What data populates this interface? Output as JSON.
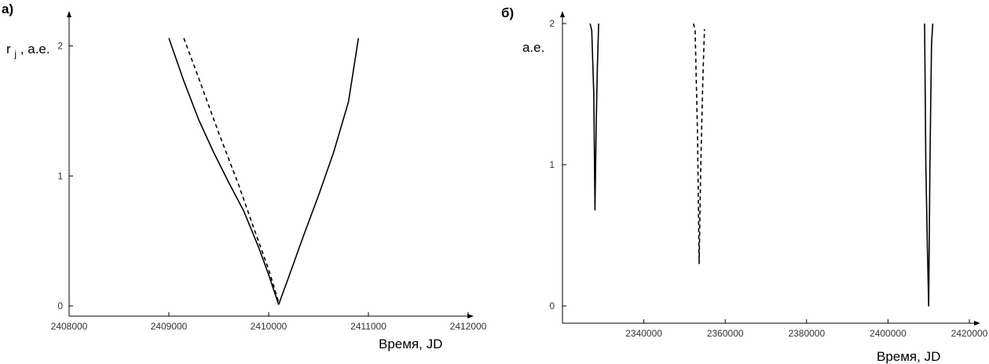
{
  "chart_data": [
    {
      "type": "line",
      "panel_label": "а)",
      "xlabel": "Время, JD",
      "ylabel": "r",
      "ylabel_subscript": "j",
      "ylabel_rest": ", а.е.",
      "xlim": [
        2408000,
        2412000
      ],
      "ylim": [
        0,
        2.1
      ],
      "xticks": [
        2408000,
        2409000,
        2410000,
        2411000,
        2412000
      ],
      "xtick_labels": [
        "2408000",
        "2409000",
        "2410000",
        "2411000",
        "2412000"
      ],
      "yticks": [
        0,
        1,
        2
      ],
      "ytick_labels": [
        "0",
        "1",
        "2"
      ],
      "grid": false,
      "series": [
        {
          "style": "solid",
          "x": [
            2409000,
            2409150,
            2409300,
            2409450,
            2409600,
            2409750,
            2409900,
            2410000,
            2410100
          ],
          "y": [
            2.06,
            1.73,
            1.43,
            1.18,
            0.95,
            0.73,
            0.45,
            0.24,
            0.01
          ]
        },
        {
          "style": "solid",
          "x": [
            2410100,
            2410200,
            2410350,
            2410500,
            2410650,
            2410800,
            2410900
          ],
          "y": [
            0.01,
            0.22,
            0.54,
            0.85,
            1.18,
            1.57,
            2.06
          ]
        },
        {
          "style": "dashed",
          "x": [
            2409150,
            2409300,
            2409500,
            2409700,
            2409850,
            2410000,
            2410100
          ],
          "y": [
            2.06,
            1.75,
            1.33,
            0.93,
            0.6,
            0.28,
            0.03
          ]
        }
      ]
    },
    {
      "type": "line",
      "panel_label": "б)",
      "xlabel": "Время, JD",
      "ylabel": "а.е.",
      "xlim": [
        2320000,
        2420000
      ],
      "ylim": [
        0,
        2
      ],
      "xticks": [
        2340000,
        2360000,
        2380000,
        2400000,
        2420000
      ],
      "xtick_labels": [
        "2340000",
        "2360000",
        "2380000",
        "2400000",
        "2420000"
      ],
      "yticks": [
        0,
        1,
        2
      ],
      "ytick_labels": [
        "0",
        "1",
        "2"
      ],
      "grid": false,
      "series": [
        {
          "style": "solid",
          "x": [
            2326800,
            2327200,
            2327700,
            2328000,
            2328300,
            2328600,
            2328900
          ],
          "y": [
            2.0,
            1.95,
            1.5,
            0.68,
            1.3,
            1.7,
            2.0
          ]
        },
        {
          "style": "dashed",
          "x": [
            2352200,
            2352600,
            2353200,
            2353600,
            2354000,
            2354500,
            2354900
          ],
          "y": [
            2.0,
            1.95,
            1.2,
            0.3,
            1.0,
            1.6,
            1.96
          ]
        },
        {
          "style": "solid",
          "x": [
            2409000,
            2409300,
            2409700,
            2410000,
            2410300,
            2410700,
            2411000
          ],
          "y": [
            2.0,
            1.0,
            0.4,
            0.0,
            1.0,
            1.85,
            2.0
          ]
        }
      ]
    }
  ]
}
